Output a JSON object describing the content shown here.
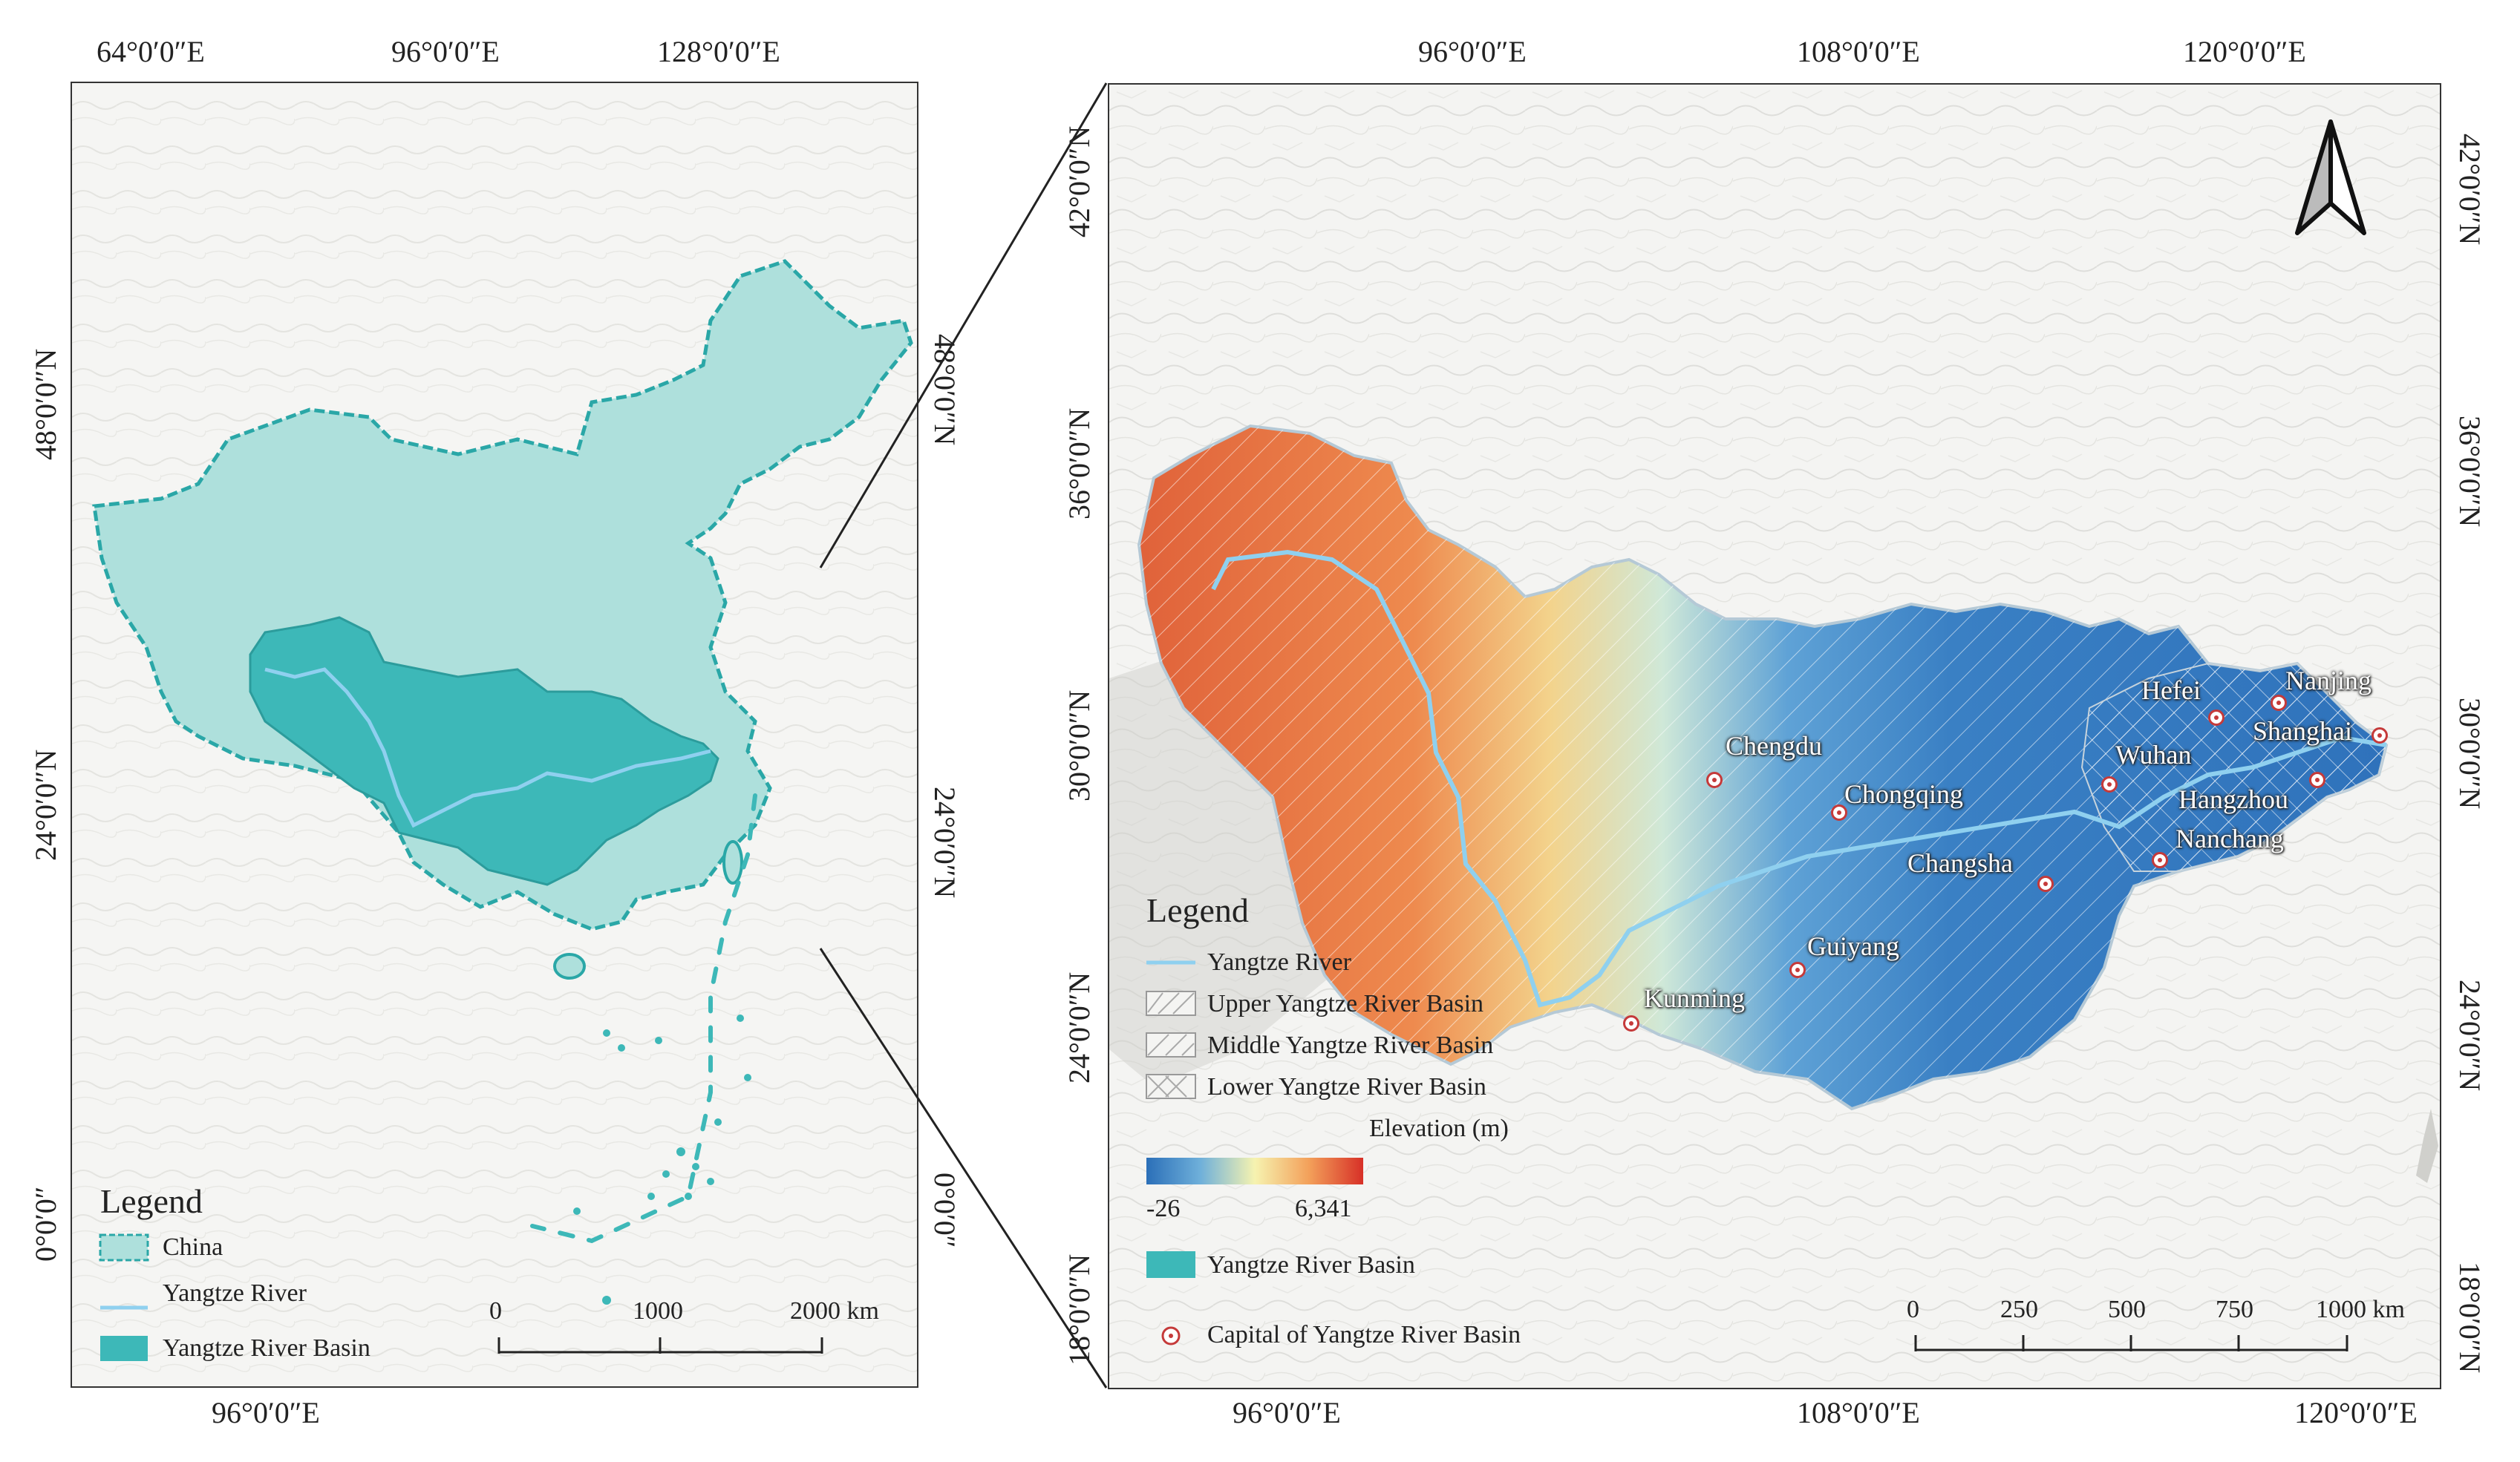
{
  "left_map": {
    "top_ticks": [
      "64°0′0″E",
      "96°0′0″E",
      "128°0′0″E"
    ],
    "bottom_ticks": [
      "96°0′0″E"
    ],
    "left_ticks": [
      "48°0′0″N",
      "24°0′0″N",
      "0°0′0″"
    ],
    "right_ticks": [
      "48°0′0″N",
      "24°0′0″N",
      "0°0′0″"
    ],
    "legend": {
      "title": "Legend",
      "china": "China",
      "river": "Yangtze River",
      "basin": "Yangtze River Basin"
    },
    "scale": {
      "labels": [
        "0",
        "1000",
        "2000 km"
      ]
    }
  },
  "right_map": {
    "top_ticks": [
      "96°0′0″E",
      "108°0′0″E",
      "120°0′0″E"
    ],
    "bottom_ticks": [
      "96°0′0″E",
      "108°0′0″E",
      "120°0′0″E"
    ],
    "left_ticks": [
      "42°0′0″N",
      "36°0′0″N",
      "30°0′0″N",
      "24°0′0″N",
      "18°0′0″N"
    ],
    "right_ticks": [
      "42°0′0″N",
      "36°0′0″N",
      "30°0′0″N",
      "24°0′0″N",
      "18°0′0″N"
    ],
    "cities": [
      "Chengdu",
      "Chongqing",
      "Wuhan",
      "Hefei",
      "Nanjing",
      "Shanghai",
      "Hangzhou",
      "Nanchang",
      "Changsha",
      "Guiyang",
      "Kunming"
    ],
    "legend": {
      "title": "Legend",
      "river": "Yangtze River",
      "upper": "Upper Yangtze River Basin",
      "middle": "Middle Yangtze River Basin",
      "lower": "Lower Yangtze River Basin",
      "elevation_title": "Elevation (m)",
      "elev_min": "-26",
      "elev_max": "6,341",
      "basin": "Yangtze River Basin",
      "capital": "Capital of Yangtze River Basin"
    },
    "scale": {
      "labels": [
        "0",
        "250",
        "500",
        "750",
        "1000 km"
      ]
    }
  },
  "colors": {
    "china_fill": "#aee0dc",
    "china_border": "#2aa7a7",
    "basin_fill": "#3db8b8",
    "river": "#8fd0ef",
    "capital_marker": "#c53a3a",
    "elev_low": "#2b6fb8",
    "elev_high": "#d73027"
  }
}
